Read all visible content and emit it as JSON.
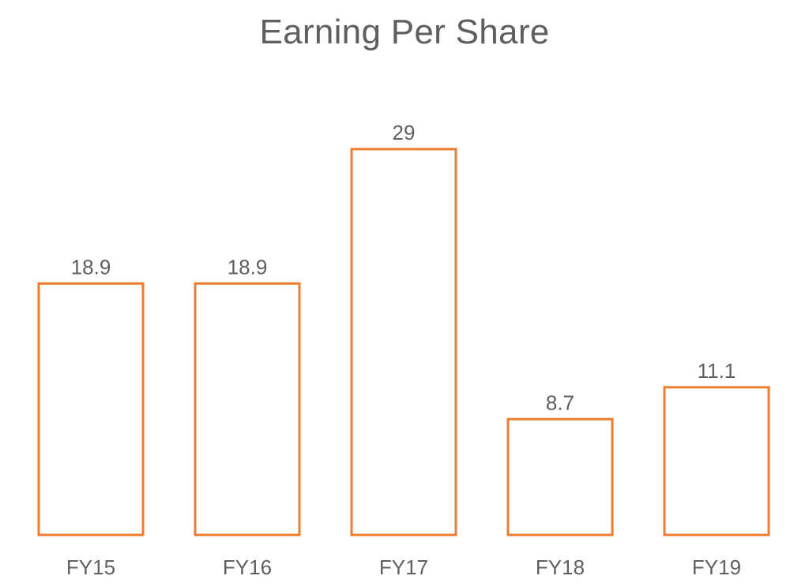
{
  "chart_data": {
    "type": "bar",
    "title": "Earning Per Share",
    "categories": [
      "FY15",
      "FY16",
      "FY17",
      "FY18",
      "FY19"
    ],
    "values": [
      18.9,
      18.9,
      29,
      8.7,
      11.1
    ],
    "data_labels": [
      "18.9",
      "18.9",
      "29",
      "8.7",
      "11.1"
    ],
    "ylim": [
      0,
      29
    ],
    "grid": false,
    "axes_visible": false,
    "legend": "none",
    "bar_style": "outlined"
  },
  "colors": {
    "bar_stroke": "#ED7D31",
    "bar_fill": "#FFFFFF",
    "text": "#5F5F5F",
    "background": "#FFFFFF"
  }
}
